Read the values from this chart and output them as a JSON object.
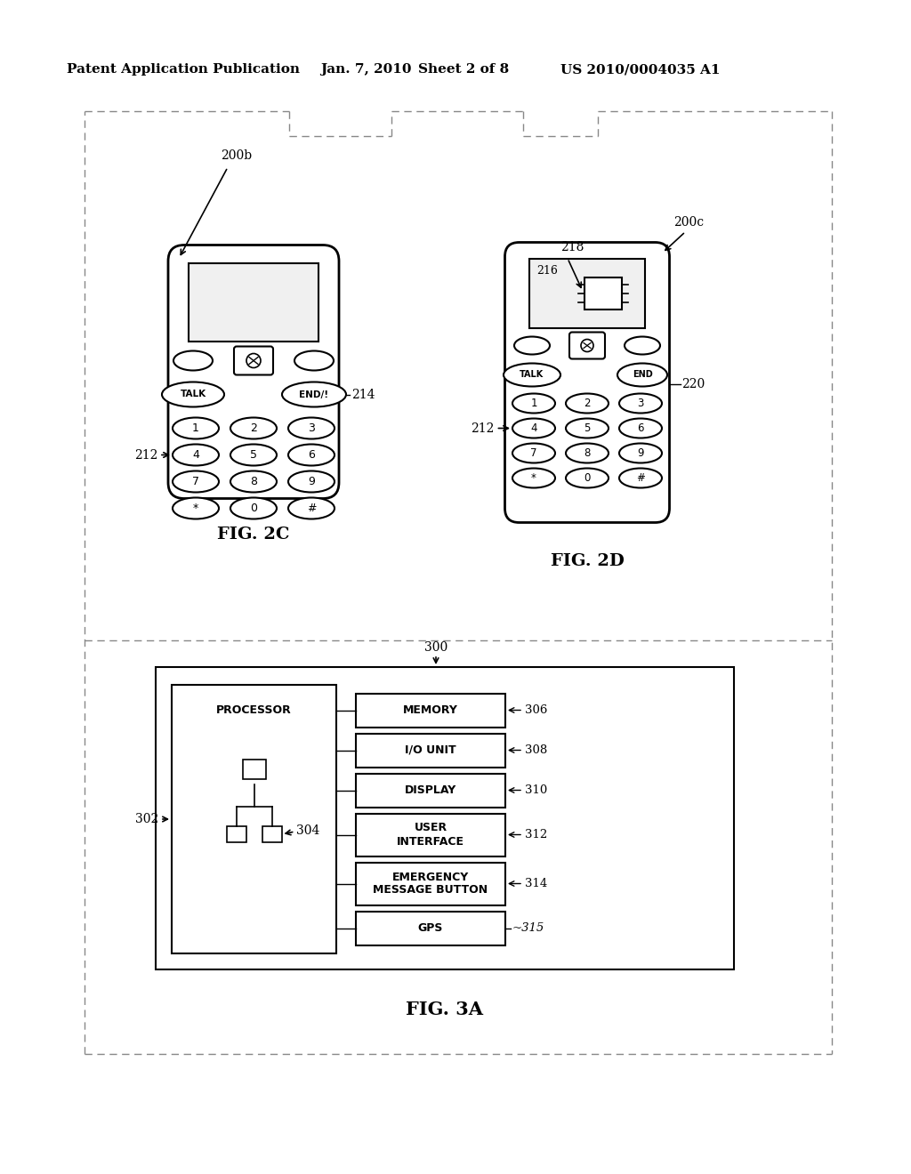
{
  "bg_color": "#ffffff",
  "header_text1": "Patent Application Publication",
  "header_text2": "Jan. 7, 2010",
  "header_text3": "Sheet 2 of 8",
  "header_text4": "US 2010/0004035 A1",
  "fig2c_label": "FIG. 2C",
  "fig2d_label": "FIG. 2D",
  "fig3a_label": "FIG. 3A",
  "label_200b": "200b",
  "label_200c": "200c",
  "label_212": "212",
  "label_214": "214",
  "label_218": "218",
  "label_220": "220",
  "label_216": "216",
  "label_300": "300",
  "label_302": "302",
  "label_304": "304",
  "label_306": "306",
  "label_308": "308",
  "label_310": "310",
  "label_312": "312",
  "label_314": "314",
  "label_315": "315"
}
